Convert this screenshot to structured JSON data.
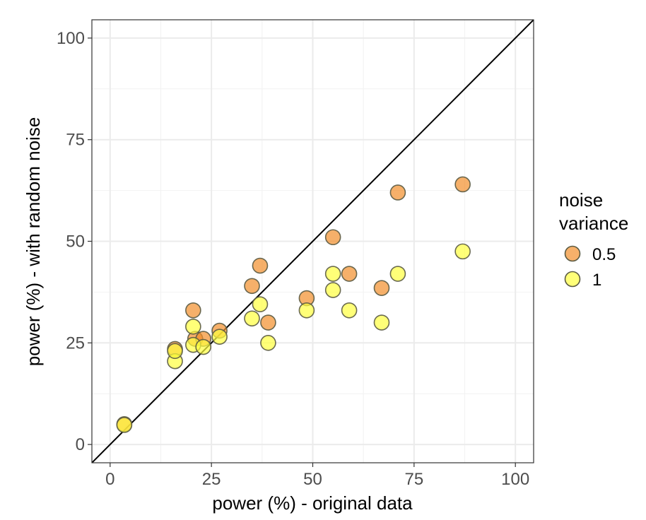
{
  "chart_data": {
    "type": "scatter",
    "title": "",
    "xlabel": "power (%) - original data",
    "ylabel": "power (%) - with random noise",
    "xlim": [
      -4.5,
      104.5
    ],
    "ylim": [
      -4.5,
      104.5
    ],
    "xticks": [
      0,
      25,
      50,
      75,
      100
    ],
    "yticks": [
      0,
      25,
      50,
      75,
      100
    ],
    "xtick_labels": [
      "0",
      "25",
      "50",
      "75",
      "100"
    ],
    "ytick_labels": [
      "0",
      "25",
      "50",
      "75",
      "100"
    ],
    "grid": true,
    "reference_line": "y = x",
    "legend": {
      "title_line1": "noise",
      "title_line2": "variance",
      "placement": "right"
    },
    "series": [
      {
        "name": "0.5",
        "color": "#F28E2B",
        "points": [
          [
            3.5,
            5.0
          ],
          [
            16.0,
            23.5
          ],
          [
            20.5,
            33.0
          ],
          [
            21.0,
            26.0
          ],
          [
            23.0,
            26.0
          ],
          [
            27.0,
            28.0
          ],
          [
            35.0,
            39.0
          ],
          [
            37.0,
            44.0
          ],
          [
            39.0,
            30.0
          ],
          [
            48.5,
            36.0
          ],
          [
            55.0,
            51.0
          ],
          [
            59.0,
            42.0
          ],
          [
            67.0,
            38.5
          ],
          [
            71.0,
            62.0
          ],
          [
            87.0,
            64.0
          ]
        ]
      },
      {
        "name": "1",
        "color": "#FFFF3F",
        "points": [
          [
            3.5,
            4.8
          ],
          [
            16.0,
            20.5
          ],
          [
            16.0,
            23.0
          ],
          [
            20.5,
            29.0
          ],
          [
            20.5,
            24.5
          ],
          [
            23.0,
            24.0
          ],
          [
            27.0,
            26.5
          ],
          [
            35.0,
            31.0
          ],
          [
            37.0,
            34.5
          ],
          [
            39.0,
            25.0
          ],
          [
            48.5,
            33.0
          ],
          [
            55.0,
            42.0
          ],
          [
            55.0,
            38.0
          ],
          [
            59.0,
            33.0
          ],
          [
            67.0,
            30.0
          ],
          [
            71.0,
            42.0
          ],
          [
            87.0,
            47.5
          ]
        ]
      }
    ]
  }
}
